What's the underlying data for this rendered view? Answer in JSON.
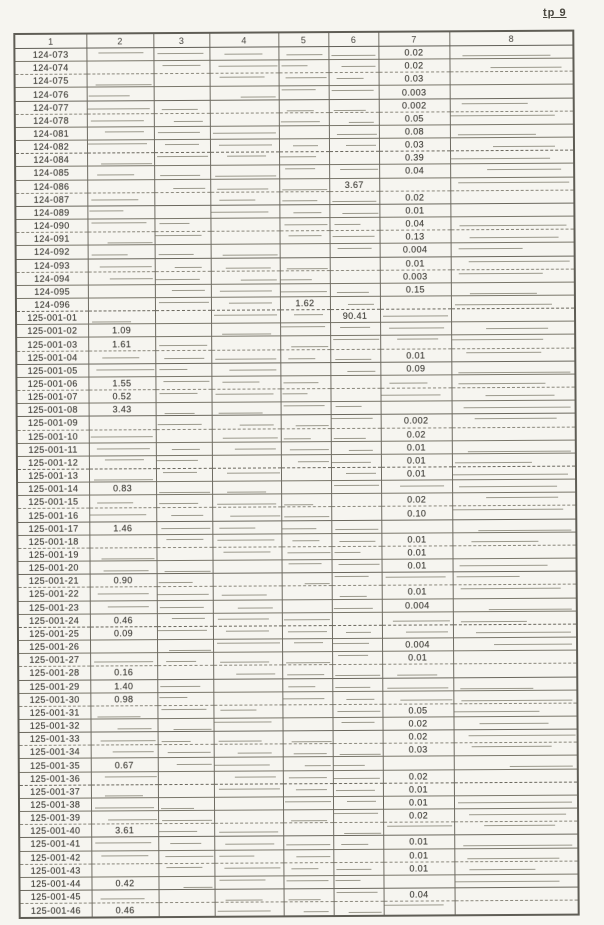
{
  "page": {
    "corner_label": "tp 9"
  },
  "colors": {
    "paper": "#f6f5f0",
    "ink": "#45433e",
    "line": "#6e6b62"
  },
  "table": {
    "headers": [
      "1",
      "2",
      "3",
      "4",
      "5",
      "6",
      "7",
      "8"
    ],
    "rows": [
      [
        "124-073",
        "",
        "",
        "",
        "",
        "",
        "0.02",
        ""
      ],
      [
        "124-074",
        "",
        "",
        "",
        "",
        "",
        "0.02",
        ""
      ],
      [
        "124-075",
        "",
        "",
        "",
        "",
        "",
        "0.03",
        ""
      ],
      [
        "124-076",
        "",
        "",
        "",
        "",
        "",
        "0.003",
        ""
      ],
      [
        "124-077",
        "",
        "",
        "",
        "",
        "",
        "0.002",
        ""
      ],
      [
        "124-078",
        "",
        "",
        "",
        "",
        "",
        "0.05",
        ""
      ],
      [
        "124-081",
        "",
        "",
        "",
        "",
        "",
        "0.08",
        ""
      ],
      [
        "124-082",
        "",
        "",
        "",
        "",
        "",
        "0.03",
        ""
      ],
      [
        "124-084",
        "",
        "",
        "",
        "",
        "",
        "0.39",
        ""
      ],
      [
        "124-085",
        "",
        "",
        "",
        "",
        "",
        "0.04",
        ""
      ],
      [
        "124-086",
        "",
        "",
        "",
        "",
        "3.67",
        "",
        ""
      ],
      [
        "124-087",
        "",
        "",
        "",
        "",
        "",
        "0.02",
        ""
      ],
      [
        "124-089",
        "",
        "",
        "",
        "",
        "",
        "0.01",
        ""
      ],
      [
        "124-090",
        "",
        "",
        "",
        "",
        "",
        "0.04",
        ""
      ],
      [
        "124-091",
        "",
        "",
        "",
        "",
        "",
        "0.13",
        ""
      ],
      [
        "124-092",
        "",
        "",
        "",
        "",
        "",
        "0.004",
        ""
      ],
      [
        "124-093",
        "",
        "",
        "",
        "",
        "",
        "0.01",
        ""
      ],
      [
        "124-094",
        "",
        "",
        "",
        "",
        "",
        "0.003",
        ""
      ],
      [
        "124-095",
        "",
        "",
        "",
        "",
        "",
        "0.15",
        ""
      ],
      [
        "124-096",
        "",
        "",
        "",
        "1.62",
        "",
        "",
        ""
      ],
      [
        "125-001-01",
        "",
        "",
        "",
        "",
        "90.41",
        "",
        ""
      ],
      [
        "125-001-02",
        "1.09",
        "",
        "",
        "",
        "",
        "",
        ""
      ],
      [
        "125-001-03",
        "1.61",
        "",
        "",
        "",
        "",
        "",
        ""
      ],
      [
        "125-001-04",
        "",
        "",
        "",
        "",
        "",
        "0.01",
        ""
      ],
      [
        "125-001-05",
        "",
        "",
        "",
        "",
        "",
        "0.09",
        ""
      ],
      [
        "125-001-06",
        "1.55",
        "",
        "",
        "",
        "",
        "",
        ""
      ],
      [
        "125-001-07",
        "0.52",
        "",
        "",
        "",
        "",
        "",
        ""
      ],
      [
        "125-001-08",
        "3.43",
        "",
        "",
        "",
        "",
        "",
        ""
      ],
      [
        "125-001-09",
        "",
        "",
        "",
        "",
        "",
        "0.002",
        ""
      ],
      [
        "125-001-10",
        "",
        "",
        "",
        "",
        "",
        "0.02",
        ""
      ],
      [
        "125-001-11",
        "",
        "",
        "",
        "",
        "",
        "0.01",
        ""
      ],
      [
        "125-001-12",
        "",
        "",
        "",
        "",
        "",
        "0.01",
        ""
      ],
      [
        "125-001-13",
        "",
        "",
        "",
        "",
        "",
        "0.01",
        ""
      ],
      [
        "125-001-14",
        "0.83",
        "",
        "",
        "",
        "",
        "",
        ""
      ],
      [
        "125-001-15",
        "",
        "",
        "",
        "",
        "",
        "0.02",
        ""
      ],
      [
        "125-001-16",
        "",
        "",
        "",
        "",
        "",
        "0.10",
        ""
      ],
      [
        "125-001-17",
        "1.46",
        "",
        "",
        "",
        "",
        "",
        ""
      ],
      [
        "125-001-18",
        "",
        "",
        "",
        "",
        "",
        "0.01",
        ""
      ],
      [
        "125-001-19",
        "",
        "",
        "",
        "",
        "",
        "0.01",
        ""
      ],
      [
        "125-001-20",
        "",
        "",
        "",
        "",
        "",
        "0.01",
        ""
      ],
      [
        "125-001-21",
        "0.90",
        "",
        "",
        "",
        "",
        "",
        ""
      ],
      [
        "125-001-22",
        "",
        "",
        "",
        "",
        "",
        "0.01",
        ""
      ],
      [
        "125-001-23",
        "",
        "",
        "",
        "",
        "",
        "0.004",
        ""
      ],
      [
        "125-001-24",
        "0.46",
        "",
        "",
        "",
        "",
        "",
        ""
      ],
      [
        "125-001-25",
        "0.09",
        "",
        "",
        "",
        "",
        "",
        ""
      ],
      [
        "125-001-26",
        "",
        "",
        "",
        "",
        "",
        "0.004",
        ""
      ],
      [
        "125-001-27",
        "",
        "",
        "",
        "",
        "",
        "0.01",
        ""
      ],
      [
        "125-001-28",
        "0.16",
        "",
        "",
        "",
        "",
        "",
        ""
      ],
      [
        "125-001-29",
        "1.40",
        "",
        "",
        "",
        "",
        "",
        ""
      ],
      [
        "125-001-30",
        "0.98",
        "",
        "",
        "",
        "",
        "",
        ""
      ],
      [
        "125-001-31",
        "",
        "",
        "",
        "",
        "",
        "0.05",
        ""
      ],
      [
        "125-001-32",
        "",
        "",
        "",
        "",
        "",
        "0.02",
        ""
      ],
      [
        "125-001-33",
        "",
        "",
        "",
        "",
        "",
        "0.02",
        ""
      ],
      [
        "125-001-34",
        "",
        "",
        "",
        "",
        "",
        "0.03",
        ""
      ],
      [
        "125-001-35",
        "0.67",
        "",
        "",
        "",
        "",
        "",
        ""
      ],
      [
        "125-001-36",
        "",
        "",
        "",
        "",
        "",
        "0.02",
        ""
      ],
      [
        "125-001-37",
        "",
        "",
        "",
        "",
        "",
        "0.01",
        ""
      ],
      [
        "125-001-38",
        "",
        "",
        "",
        "",
        "",
        "0.01",
        ""
      ],
      [
        "125-001-39",
        "",
        "",
        "",
        "",
        "",
        "0.02",
        ""
      ],
      [
        "125-001-40",
        "3.61",
        "",
        "",
        "",
        "",
        "",
        ""
      ],
      [
        "125-001-41",
        "",
        "",
        "",
        "",
        "",
        "0.01",
        ""
      ],
      [
        "125-001-42",
        "",
        "",
        "",
        "",
        "",
        "0.01",
        ""
      ],
      [
        "125-001-43",
        "",
        "",
        "",
        "",
        "",
        "0.01",
        ""
      ],
      [
        "125-001-44",
        "0.42",
        "",
        "",
        "",
        "",
        "",
        ""
      ],
      [
        "125-001-45",
        "",
        "",
        "",
        "",
        "",
        "0.04",
        ""
      ],
      [
        "125-001-46",
        "0.46",
        "",
        "",
        "",
        "",
        "",
        ""
      ]
    ]
  }
}
